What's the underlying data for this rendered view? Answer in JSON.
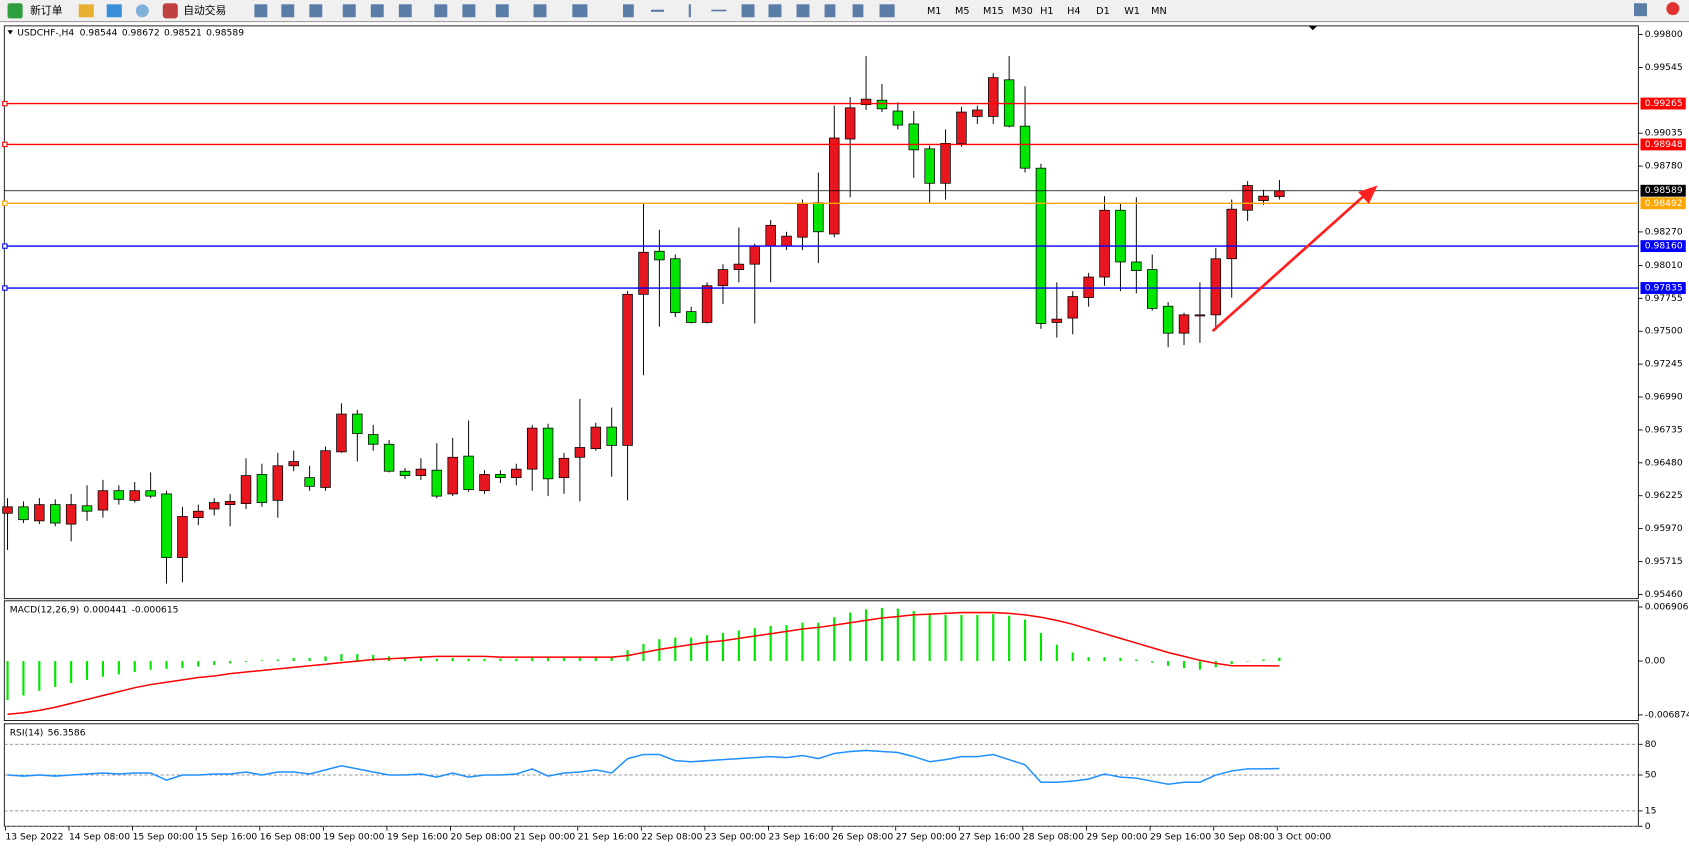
{
  "toolbar": {
    "new_order": "新订单",
    "auto_trading": "自动交易",
    "timeframes": [
      "M1",
      "M5",
      "M15",
      "M30",
      "H1",
      "H4",
      "D1",
      "W1",
      "MN"
    ]
  },
  "chart_data": [
    {
      "type": "candlestick",
      "title": "USDCHF-,H4",
      "up_color": "#e8171f",
      "down_color": "#00e600",
      "edge_color": "#000000",
      "categories": [
        "13 Sep 2022",
        null,
        null,
        null,
        "14 Sep 08:00",
        null,
        null,
        null,
        "15 Sep 00:00",
        null,
        null,
        null,
        "15 Sep 16:00",
        null,
        null,
        null,
        "16 Sep 08:00",
        null,
        null,
        null,
        "19 Sep 00:00",
        null,
        null,
        null,
        "19 Sep 16:00",
        null,
        null,
        null,
        "20 Sep 08:00",
        null,
        null,
        null,
        "21 Sep 00:00",
        null,
        null,
        null,
        "21 Sep 16:00",
        null,
        null,
        null,
        "22 Sep 08:00",
        null,
        null,
        null,
        "23 Sep 00:00",
        null,
        null,
        null,
        "23 Sep 16:00",
        null,
        null,
        null,
        "26 Sep 08:00",
        null,
        null,
        null,
        "27 Sep 00:00",
        null,
        null,
        null,
        "27 Sep 16:00",
        null,
        null,
        null,
        "28 Sep 08:00",
        null,
        null,
        null,
        "29 Sep 00:00",
        null,
        null,
        null,
        "29 Sep 16:00",
        null,
        null,
        null,
        "30 Sep 08:00",
        null,
        null,
        null,
        "3 Oct 00:00"
      ],
      "open": [
        0.96089,
        0.96139,
        0.9603,
        0.96156,
        0.96005,
        0.96147,
        0.96114,
        0.96264,
        0.96189,
        0.96264,
        0.96239,
        0.95746,
        0.96055,
        0.96122,
        0.96156,
        0.96164,
        0.9639,
        0.96189,
        0.96457,
        0.96365,
        0.96289,
        0.96565,
        0.96858,
        0.96699,
        0.96624,
        0.96415,
        0.96381,
        0.96423,
        0.96239,
        0.96532,
        0.96264,
        0.9639,
        0.96365,
        0.96431,
        0.96749,
        0.96365,
        0.96523,
        0.9659,
        0.96757,
        0.96615,
        0.97786,
        0.9812,
        0.98062,
        0.97652,
        0.97568,
        0.97853,
        0.97978,
        0.9802,
        0.98162,
        0.98162,
        0.98229,
        0.98496,
        0.98254,
        0.9899,
        0.99257,
        0.99291,
        0.99207,
        0.99107,
        0.98914,
        0.98647,
        0.98956,
        0.99165,
        0.99165,
        0.99449,
        0.9909,
        0.98764,
        0.97568,
        0.97602,
        0.97761,
        0.9792,
        0.98438,
        0.98037,
        0.97978,
        0.97694,
        0.97485,
        0.97619,
        0.97627,
        0.98062,
        0.98438,
        0.98513,
        0.98544
      ],
      "high": [
        0.96206,
        0.96181,
        0.96206,
        0.96197,
        0.96239,
        0.96306,
        0.96348,
        0.96306,
        0.96331,
        0.96406,
        0.96264,
        0.96139,
        0.96156,
        0.96206,
        0.96239,
        0.96515,
        0.96473,
        0.96557,
        0.96574,
        0.96457,
        0.96607,
        0.96941,
        0.96891,
        0.96774,
        0.96657,
        0.9644,
        0.96515,
        0.96632,
        0.96674,
        0.96808,
        0.96423,
        0.96423,
        0.96473,
        0.96774,
        0.96783,
        0.96557,
        0.96975,
        0.96791,
        0.96908,
        0.97811,
        0.98496,
        0.98287,
        0.98095,
        0.9769,
        0.97879,
        0.9802,
        0.98304,
        0.98179,
        0.98363,
        0.98271,
        0.98521,
        0.9873,
        0.99249,
        0.99316,
        0.99633,
        0.99416,
        0.99274,
        0.99207,
        0.98939,
        0.99065,
        0.9924,
        0.99249,
        0.995,
        0.99633,
        0.99399,
        0.98797,
        0.97879,
        0.97811,
        0.97953,
        0.98547,
        0.98496,
        0.98538,
        0.98095,
        0.97727,
        0.97644,
        0.97879,
        0.98145,
        0.98521,
        0.98664,
        0.98597,
        0.98672
      ],
      "low": [
        0.95804,
        0.96013,
        0.96005,
        0.95988,
        0.95871,
        0.9603,
        0.96055,
        0.96156,
        0.96172,
        0.96206,
        0.95545,
        0.95554,
        0.95997,
        0.96072,
        0.95988,
        0.96122,
        0.96139,
        0.96055,
        0.96415,
        0.96264,
        0.96264,
        0.96557,
        0.9649,
        0.96574,
        0.96406,
        0.96356,
        0.96348,
        0.96206,
        0.96222,
        0.96256,
        0.96239,
        0.96323,
        0.96306,
        0.96264,
        0.96222,
        0.96239,
        0.96181,
        0.96574,
        0.96373,
        0.96189,
        0.97159,
        0.97535,
        0.9761,
        0.9756,
        0.9756,
        0.97711,
        0.97879,
        0.9756,
        0.97879,
        0.98129,
        0.98129,
        0.98028,
        0.98229,
        0.98538,
        0.99215,
        0.99199,
        0.99065,
        0.98689,
        0.98496,
        0.98521,
        0.98931,
        0.99107,
        0.99107,
        0.99081,
        0.9873,
        0.97518,
        0.97451,
        0.97476,
        0.9769,
        0.97853,
        0.97811,
        0.97794,
        0.9766,
        0.97376,
        0.97393,
        0.9741,
        0.9751,
        0.97761,
        0.98354,
        0.9848,
        0.98521
      ],
      "close": [
        0.96139,
        0.96039,
        0.96156,
        0.96013,
        0.96156,
        0.96105,
        0.96264,
        0.96197,
        0.96264,
        0.96222,
        0.95746,
        0.96064,
        0.96105,
        0.96172,
        0.96181,
        0.96381,
        0.96172,
        0.96457,
        0.9649,
        0.96298,
        0.96574,
        0.96858,
        0.96707,
        0.96624,
        0.96415,
        0.96381,
        0.96431,
        0.96222,
        0.96523,
        0.96273,
        0.9639,
        0.96365,
        0.96431,
        0.96749,
        0.96356,
        0.96515,
        0.96599,
        0.96757,
        0.96615,
        0.97786,
        0.98112,
        0.98053,
        0.97644,
        0.97568,
        0.97853,
        0.97978,
        0.9802,
        0.98162,
        0.98321,
        0.98237,
        0.98488,
        0.98271,
        0.98998,
        0.99232,
        0.99299,
        0.99224,
        0.99098,
        0.98906,
        0.98647,
        0.98956,
        0.99199,
        0.99215,
        0.99466,
        0.9909,
        0.98764,
        0.9756,
        0.97594,
        0.97769,
        0.9792,
        0.98438,
        0.98037,
        0.9797,
        0.97677,
        0.97485,
        0.97627,
        0.97627,
        0.98062,
        0.98446,
        0.9863,
        0.98547,
        0.98589
      ],
      "ylim": [
        0.95427,
        0.99867
      ],
      "yticks": [
        {
          "value": 0.998,
          "label": "0.99800"
        },
        0.99545,
        0.99035,
        {
          "value": 0.9878,
          "label": "0.98780"
        },
        {
          "value": 0.9827,
          "label": "0.98270"
        },
        {
          "value": 0.9801,
          "label": "0.98010"
        },
        0.97755,
        {
          "value": 0.975,
          "label": "0.97500"
        },
        0.97245,
        {
          "value": 0.9699,
          "label": "0.96990"
        },
        0.96735,
        {
          "value": 0.9648,
          "label": "0.96480"
        },
        0.96225,
        {
          "value": 0.9597,
          "label": "0.95970"
        },
        0.95715,
        {
          "value": 0.9546,
          "label": "0.95460"
        }
      ],
      "levels": [
        {
          "value": 0.99265,
          "color": "#ff0000"
        },
        {
          "value": 0.98948,
          "color": "#ff0000"
        },
        {
          "value": 0.98492,
          "color": "#ffa500"
        },
        {
          "value": 0.9816,
          "label": "0.98160",
          "color": "#0000ff"
        },
        {
          "value": 0.97835,
          "color": "#0000ff"
        }
      ],
      "current_price_color": "#000000"
    },
    {
      "type": "macd",
      "title": "MACD(12,26,9)",
      "series": [
        {
          "color": "#00e600",
          "values": [
            -0.005,
            -0.0044,
            -0.0038,
            -0.0033,
            -0.0028,
            -0.0024,
            -0.002,
            -0.0017,
            -0.0014,
            -0.0011,
            -0.001,
            -0.0009,
            -0.0007,
            -0.0005,
            -0.0003,
            -0.0001,
            0.0001,
            0.0002,
            0.0004,
            0.0004,
            0.0006,
            0.0009,
            0.0009,
            0.0008,
            0.0006,
            0.0005,
            0.0004,
            0.0003,
            0.0004,
            0.0003,
            0.0003,
            0.0003,
            0.0003,
            0.0005,
            0.0004,
            0.0004,
            0.0004,
            0.0005,
            0.0005,
            0.0014,
            0.0022,
            0.0028,
            0.003,
            0.003,
            0.0033,
            0.0036,
            0.0039,
            0.0042,
            0.0045,
            0.0046,
            0.0049,
            0.0049,
            0.0056,
            0.0062,
            0.0066,
            0.0068,
            0.0067,
            0.0064,
            0.006,
            0.0059,
            0.0059,
            0.0059,
            0.006,
            0.0058,
            0.0053,
            0.0036,
            0.0021,
            0.0011,
            0.0005,
            0.0005,
            0.0004,
            0.0002,
            -0.0002,
            -0.0006,
            -0.0009,
            -0.0011,
            -0.0008,
            -0.0004,
            0.0,
            0.0002,
            0.000441
          ]
        },
        {
          "color": "#ff0000",
          "values": [
            -0.0068,
            -0.0066,
            -0.0063,
            -0.0059,
            -0.0054,
            -0.0049,
            -0.0044,
            -0.0039,
            -0.0034,
            -0.003,
            -0.0027,
            -0.0024,
            -0.0021,
            -0.0019,
            -0.0016,
            -0.0014,
            -0.0012,
            -0.001,
            -0.0008,
            -0.0006,
            -0.0004,
            -0.0002,
            0.0,
            0.0002,
            0.0003,
            0.0004,
            0.0005,
            0.0006,
            0.0006,
            0.0006,
            0.0006,
            0.0005,
            0.0005,
            0.0005,
            0.0005,
            0.0005,
            0.0005,
            0.0005,
            0.0005,
            0.0007,
            0.0011,
            0.0015,
            0.0018,
            0.0021,
            0.0024,
            0.0026,
            0.0029,
            0.0032,
            0.0035,
            0.0038,
            0.0041,
            0.0043,
            0.0046,
            0.0049,
            0.0052,
            0.0055,
            0.0057,
            0.0059,
            0.006,
            0.0061,
            0.0062,
            0.0062,
            0.0062,
            0.0061,
            0.0059,
            0.0056,
            0.0052,
            0.0047,
            0.0041,
            0.0035,
            0.0029,
            0.0023,
            0.0017,
            0.0011,
            0.0006,
            0.0001,
            -0.0003,
            -0.0006,
            -0.0006,
            -0.0006,
            -0.000615
          ]
        }
      ],
      "ylim": [
        -0.0076,
        0.0077
      ],
      "yticks": [
        0.006906,
        {
          "value": 0,
          "label": "0.00"
        },
        -0.006874
      ]
    },
    {
      "type": "line",
      "title": "RSI(14)",
      "series": [
        {
          "color": "#1e90ff",
          "values": [
            50,
            49,
            50,
            49,
            50,
            51,
            52,
            51,
            52,
            52,
            45,
            50,
            50,
            51,
            51,
            53,
            50,
            53,
            53,
            51,
            55,
            59,
            56,
            53,
            50,
            50,
            51,
            48,
            52,
            48,
            50,
            50,
            51,
            56,
            49,
            52,
            53,
            55,
            52,
            66,
            70,
            70,
            64,
            63,
            64,
            65,
            66,
            67,
            68,
            67,
            69,
            66,
            71,
            73,
            74,
            73,
            72,
            68,
            63,
            65,
            68,
            68,
            70,
            65,
            60,
            43,
            43,
            44,
            46,
            51,
            48,
            47,
            44,
            41,
            43,
            43,
            50,
            54,
            56,
            56,
            56.3586
          ]
        }
      ],
      "ylim": [
        0,
        100
      ],
      "yticks": [
        0,
        15,
        50,
        80
      ],
      "grid": "dashed"
    }
  ]
}
